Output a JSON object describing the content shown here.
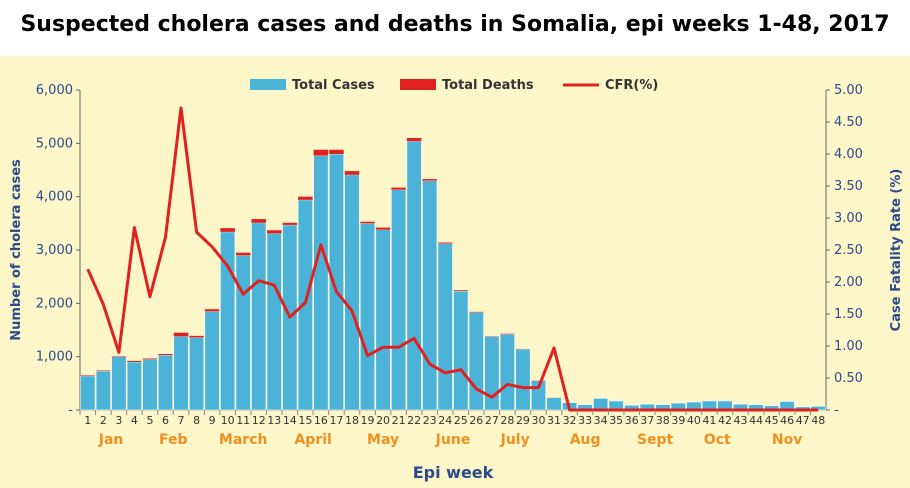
{
  "title": "Suspected cholera cases and deaths in Somalia, epi weeks 1-48, 2017",
  "colors": {
    "cases": "#4bb3d8",
    "deaths": "#e0221f",
    "cfr": "#e0221f",
    "axis_text": "#2a4a8a",
    "month_text": "#f0901e",
    "background": "#fdf6c9"
  },
  "chart_data": {
    "type": "bar+line",
    "legend_position": "top",
    "legend": [
      "Total Cases",
      "Total Deaths",
      "CFR(%)"
    ],
    "xlabel": "Epi week",
    "ylabel_left": "Number of cholera cases",
    "ylabel_right": "Case Fatality Rate (%)",
    "ylim_left": [
      0,
      6000
    ],
    "ylim_right": [
      0,
      5
    ],
    "left_ticks": [
      "-",
      "1,000",
      "2,000",
      "3,000",
      "4,000",
      "5,000",
      "6,000"
    ],
    "right_ticks": [
      "-",
      "0.50",
      "1.00",
      "1.50",
      "2.00",
      "2.50",
      "3.00",
      "3.50",
      "4.00",
      "4.50",
      "5.00"
    ],
    "weeks": [
      "1",
      "2",
      "3",
      "4",
      "5",
      "6",
      "7",
      "8",
      "9",
      "10",
      "11",
      "12",
      "13",
      "14",
      "15",
      "16",
      "17",
      "18",
      "19",
      "20",
      "21",
      "22",
      "23",
      "24",
      "25",
      "26",
      "27",
      "28",
      "29",
      "30",
      "31",
      "32",
      "33",
      "34",
      "35",
      "36",
      "37",
      "38",
      "39",
      "40",
      "41",
      "42",
      "43",
      "44",
      "45",
      "46",
      "47",
      "48"
    ],
    "total_cases": [
      640,
      730,
      1000,
      900,
      950,
      1030,
      1380,
      1360,
      1850,
      3340,
      2900,
      3510,
      3310,
      3470,
      3940,
      4770,
      4800,
      4410,
      3500,
      3380,
      4130,
      5040,
      4300,
      3120,
      2230,
      1830,
      1380,
      1420,
      1140,
      550,
      230,
      140,
      100,
      220,
      170,
      90,
      110,
      100,
      130,
      150,
      170,
      170,
      110,
      100,
      80,
      160,
      60,
      70
    ],
    "total_deaths": [
      10,
      10,
      10,
      20,
      15,
      20,
      70,
      30,
      40,
      70,
      50,
      70,
      60,
      40,
      60,
      110,
      80,
      70,
      30,
      40,
      40,
      60,
      30,
      20,
      15,
      10,
      5,
      10,
      5,
      5,
      3,
      0,
      0,
      0,
      0,
      0,
      0,
      0,
      0,
      0,
      0,
      0,
      0,
      0,
      0,
      0,
      0,
      0
    ],
    "cfr_percent": [
      2.2,
      1.65,
      0.9,
      2.85,
      1.77,
      2.7,
      4.72,
      2.78,
      2.55,
      2.25,
      1.81,
      2.02,
      1.95,
      1.45,
      1.68,
      2.58,
      1.85,
      1.55,
      0.85,
      0.98,
      0.98,
      1.12,
      0.72,
      0.58,
      0.63,
      0.33,
      0.2,
      0.4,
      0.35,
      0.35,
      0.97,
      0,
      0,
      0,
      0,
      0,
      0,
      0,
      0,
      0,
      0,
      0,
      0,
      0,
      0,
      0,
      0,
      0
    ],
    "months": [
      {
        "label": "Jan",
        "start": 1,
        "end": 4
      },
      {
        "label": "Feb",
        "start": 5,
        "end": 8
      },
      {
        "label": "March",
        "start": 9,
        "end": 13
      },
      {
        "label": "April",
        "start": 14,
        "end": 17
      },
      {
        "label": "May",
        "start": 18,
        "end": 22
      },
      {
        "label": "June",
        "start": 23,
        "end": 26
      },
      {
        "label": "July",
        "start": 27,
        "end": 30
      },
      {
        "label": "Aug",
        "start": 31,
        "end": 35
      },
      {
        "label": "Sept",
        "start": 36,
        "end": 39
      },
      {
        "label": "Oct",
        "start": 40,
        "end": 43
      },
      {
        "label": "Nov",
        "start": 44,
        "end": 48
      }
    ]
  }
}
